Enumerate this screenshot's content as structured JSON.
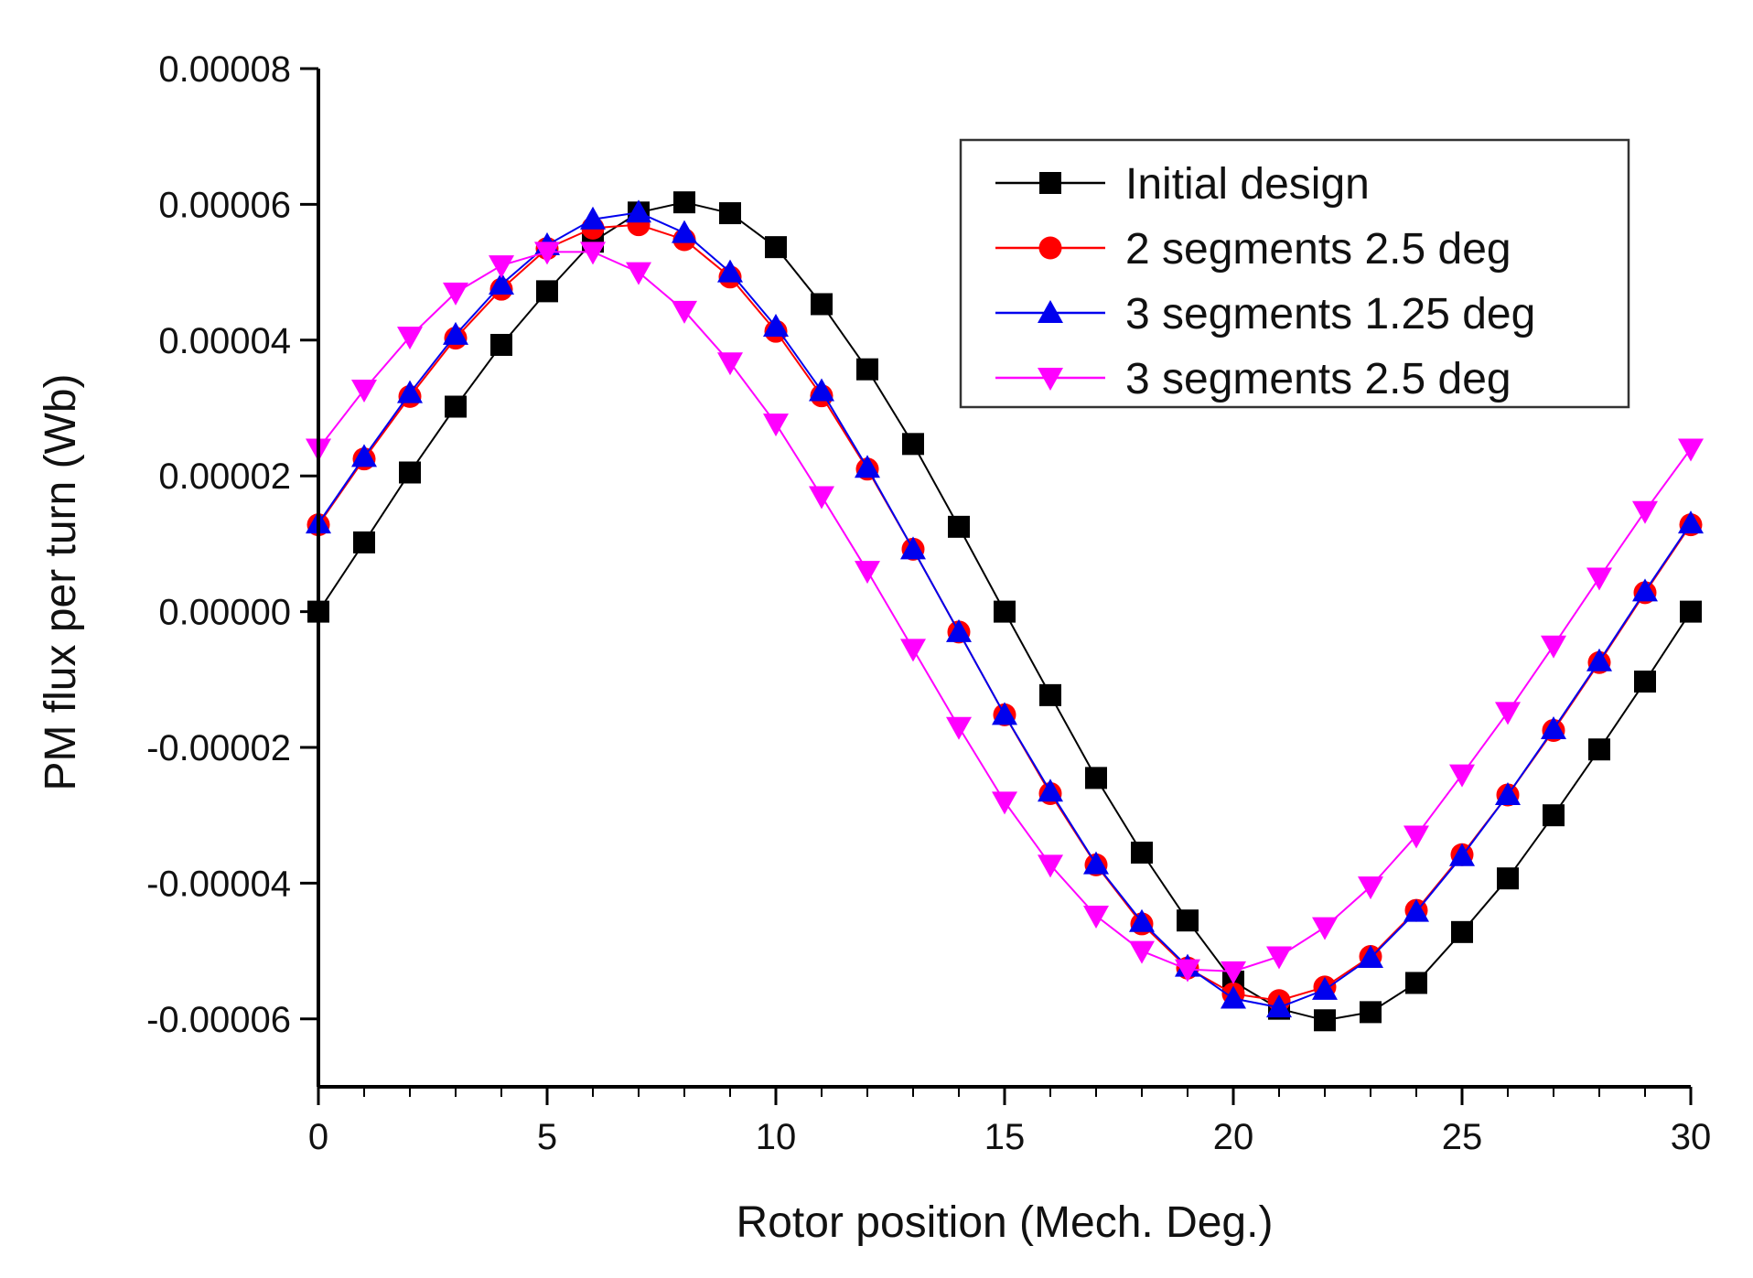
{
  "chart_data": {
    "type": "line",
    "title": "",
    "xlabel": "Rotor position (Mech. Deg.)",
    "ylabel": "PM flux per turn (Wb)",
    "xlim": [
      0,
      30
    ],
    "ylim": [
      -7e-05,
      8e-05
    ],
    "xticks": [
      0,
      5,
      10,
      15,
      20,
      25,
      30
    ],
    "xtick_labels": [
      "0",
      "5",
      "10",
      "15",
      "20",
      "25",
      "30"
    ],
    "yticks": [
      8e-05,
      6e-05,
      4e-05,
      2e-05,
      0,
      -2e-05,
      -4e-05,
      -6e-05
    ],
    "ytick_labels": [
      "0.00008",
      "0.00006",
      "0.00004",
      "0.00002",
      "0.00000",
      "-0.00002",
      "-0.00004",
      "-0.00006"
    ],
    "grid": false,
    "legend_position": "top-right",
    "x": [
      0,
      1,
      2,
      3,
      4,
      5,
      6,
      7,
      8,
      9,
      10,
      11,
      12,
      13,
      14,
      15,
      16,
      17,
      18,
      19,
      20,
      21,
      22,
      23,
      24,
      25,
      26,
      27,
      28,
      29,
      30
    ],
    "series": [
      {
        "name": "Initial design",
        "color": "#000000",
        "marker": "square",
        "values": [
          0,
          1.02e-05,
          2.05e-05,
          3.02e-05,
          3.93e-05,
          4.72e-05,
          5.45e-05,
          5.88e-05,
          6.03e-05,
          5.87e-05,
          5.37e-05,
          4.53e-05,
          3.57e-05,
          2.47e-05,
          1.25e-05,
          0,
          -1.23e-05,
          -2.45e-05,
          -3.55e-05,
          -4.55e-05,
          -5.45e-05,
          -5.85e-05,
          -6.02e-05,
          -5.9e-05,
          -5.47e-05,
          -4.72e-05,
          -3.93e-05,
          -3e-05,
          -2.03e-05,
          -1.03e-05,
          0
        ]
      },
      {
        "name": "2 segments 2.5 deg",
        "color": "#ff0000",
        "marker": "circle",
        "values": [
          1.28e-05,
          2.25e-05,
          3.17e-05,
          4.03e-05,
          4.75e-05,
          5.35e-05,
          5.65e-05,
          5.7e-05,
          5.48e-05,
          4.93e-05,
          4.13e-05,
          3.18e-05,
          2.1e-05,
          9.2e-06,
          -3e-06,
          -1.52e-05,
          -2.68e-05,
          -3.73e-05,
          -4.6e-05,
          -5.25e-05,
          -5.63e-05,
          -5.73e-05,
          -5.53e-05,
          -5.08e-05,
          -4.4e-05,
          -3.58e-05,
          -2.7e-05,
          -1.75e-05,
          -7.5e-06,
          2.8e-06,
          1.28e-05
        ]
      },
      {
        "name": "3 segments 1.25 deg",
        "color": "#0000ee",
        "marker": "triangle-up",
        "values": [
          1.3e-05,
          2.28e-05,
          3.22e-05,
          4.08e-05,
          4.82e-05,
          5.4e-05,
          5.78e-05,
          5.88e-05,
          5.58e-05,
          5e-05,
          4.2e-05,
          3.25e-05,
          2.12e-05,
          9.2e-06,
          -3e-06,
          -1.52e-05,
          -2.65e-05,
          -3.72e-05,
          -4.57e-05,
          -5.23e-05,
          -5.7e-05,
          -5.83e-05,
          -5.57e-05,
          -5.1e-05,
          -4.42e-05,
          -3.6e-05,
          -2.7e-05,
          -1.73e-05,
          -7.3e-06,
          3e-06,
          1.3e-05
        ]
      },
      {
        "name": "3 segments 2.5 deg",
        "color": "#ff00ff",
        "marker": "triangle-down",
        "values": [
          2.4e-05,
          3.27e-05,
          4.05e-05,
          4.7e-05,
          5.1e-05,
          5.3e-05,
          5.3e-05,
          5e-05,
          4.43e-05,
          3.67e-05,
          2.77e-05,
          1.7e-05,
          6e-06,
          -5.5e-06,
          -1.7e-05,
          -2.8e-05,
          -3.73e-05,
          -4.48e-05,
          -5e-05,
          -5.27e-05,
          -5.3e-05,
          -5.08e-05,
          -4.65e-05,
          -4.05e-05,
          -3.3e-05,
          -2.4e-05,
          -1.48e-05,
          -5e-06,
          5e-06,
          1.48e-05,
          2.4e-05
        ]
      }
    ]
  }
}
